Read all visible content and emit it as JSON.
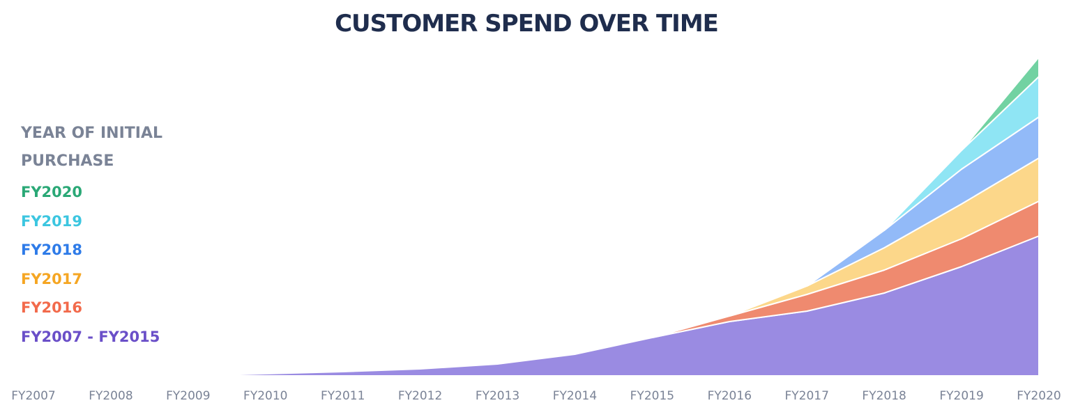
{
  "chart_data": {
    "type": "stacked_area",
    "title": "CUSTOMER SPEND OVER TIME",
    "legend_title": "YEAR OF INITIAL PURCHASE",
    "categories": [
      "FY2007",
      "FY2008",
      "FY2009",
      "FY2010",
      "FY2011",
      "FY2012",
      "FY2013",
      "FY2014",
      "FY2015",
      "FY2016",
      "FY2017",
      "FY2018",
      "FY2019",
      "FY2020"
    ],
    "series": [
      {
        "name": "FY2007 - FY2015",
        "color": "#9a8be2",
        "text_color": "#6a4fc8",
        "values": [
          null,
          null,
          0,
          3,
          6,
          10,
          17,
          31,
          55,
          78,
          93,
          119,
          157,
          201
        ]
      },
      {
        "name": "FY2016",
        "color": "#ef8a6f",
        "text_color": "#f26a4b",
        "values": [
          null,
          null,
          null,
          null,
          null,
          null,
          null,
          null,
          0,
          8,
          24,
          33,
          40,
          50
        ]
      },
      {
        "name": "FY2017",
        "color": "#fcd78a",
        "text_color": "#f5a623",
        "values": [
          null,
          null,
          null,
          null,
          null,
          null,
          null,
          null,
          null,
          0,
          12,
          32,
          50,
          62
        ]
      },
      {
        "name": "FY2018",
        "color": "#92baf8",
        "text_color": "#2e7be8",
        "values": [
          null,
          null,
          null,
          null,
          null,
          null,
          null,
          null,
          null,
          null,
          0,
          25,
          50,
          59
        ]
      },
      {
        "name": "FY2019",
        "color": "#8fe5f4",
        "text_color": "#3cc6e0",
        "values": [
          null,
          null,
          null,
          null,
          null,
          null,
          null,
          null,
          null,
          null,
          null,
          0,
          27,
          58
        ]
      },
      {
        "name": "FY2020",
        "color": "#72d2a2",
        "text_color": "#2aa876",
        "values": [
          null,
          null,
          null,
          null,
          null,
          null,
          null,
          null,
          null,
          null,
          null,
          null,
          0,
          28
        ]
      }
    ]
  }
}
